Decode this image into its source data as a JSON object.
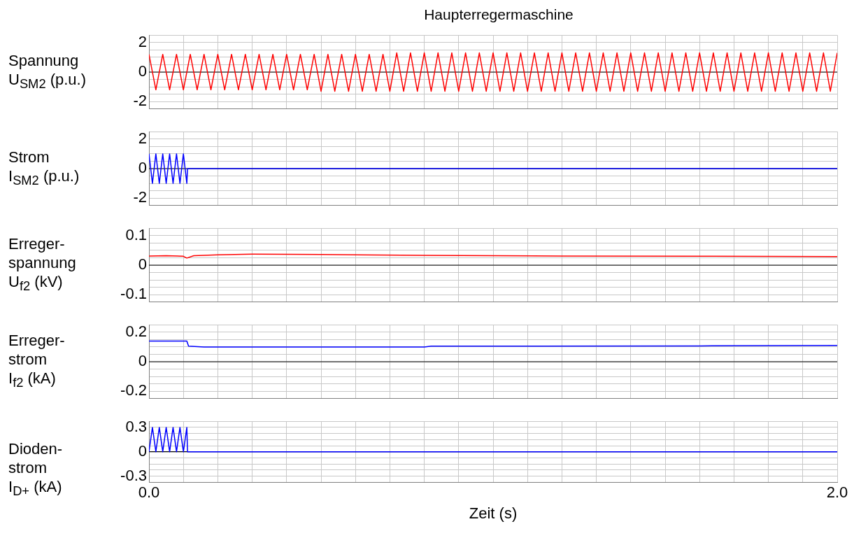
{
  "chart_data": [
    {
      "type": "line",
      "title": "Haupterregermaschine",
      "ylabel": "Spannung\nU$_{SM2}$ (p.u.)",
      "tick_labels": "y",
      "grid": true,
      "x": [
        0,
        0.02,
        0.04,
        0.06,
        0.08,
        0.1,
        0.12,
        0.14,
        0.16,
        0.18,
        0.2,
        0.22,
        0.24,
        0.26,
        0.28,
        0.3,
        0.32,
        0.34,
        0.36,
        0.38,
        0.4,
        0.42,
        0.44,
        0.46,
        0.48,
        0.5,
        0.52,
        0.54,
        0.56,
        0.58,
        0.6,
        0.62,
        0.64,
        0.66,
        0.68,
        0.7,
        0.72,
        0.74,
        0.76,
        0.78,
        0.8,
        0.82,
        0.84,
        0.86,
        0.88,
        0.9,
        0.92,
        0.94,
        0.96,
        0.98,
        1,
        1.02,
        1.04,
        1.06,
        1.08,
        1.1,
        1.12,
        1.14,
        1.16,
        1.18,
        1.2,
        1.22,
        1.24,
        1.26,
        1.28,
        1.3,
        1.32,
        1.34,
        1.36,
        1.38,
        1.4,
        1.42,
        1.44,
        1.46,
        1.48,
        1.5,
        1.52,
        1.54,
        1.56,
        1.58,
        1.6,
        1.62,
        1.64,
        1.66,
        1.68,
        1.7,
        1.72,
        1.74,
        1.76,
        1.78,
        1.8,
        1.82,
        1.84,
        1.86,
        1.88,
        1.9,
        1.92,
        1.94,
        1.96,
        1.98,
        2
      ],
      "series": [
        {
          "color": "#ff0000",
          "values": [
            1.2,
            -1.2,
            1.2,
            -1.2,
            1.2,
            -1.2,
            1.2,
            -1.2,
            1.2,
            -1.2,
            1.2,
            -1.2,
            1.2,
            -1.2,
            1.2,
            -1.2,
            1.2,
            -1.2,
            1.2,
            -1.2,
            1.2,
            -1.2,
            1.2,
            -1.2,
            1.2,
            -1.3,
            1.2,
            -1.3,
            1.2,
            -1.3,
            1.2,
            -1.3,
            1.2,
            -1.3,
            1.2,
            -1.3,
            1.3,
            -1.3,
            1.3,
            -1.3,
            1.3,
            -1.3,
            1.3,
            -1.3,
            1.3,
            -1.3,
            1.3,
            -1.3,
            1.3,
            -1.3,
            1.3,
            -1.3,
            1.3,
            -1.3,
            1.3,
            -1.3,
            1.3,
            -1.3,
            1.3,
            -1.3,
            1.3,
            -1.3,
            1.3,
            -1.3,
            1.3,
            -1.3,
            1.3,
            -1.3,
            1.3,
            -1.3,
            1.3,
            -1.3,
            1.3,
            -1.3,
            1.3,
            -1.3,
            1.3,
            -1.3,
            1.3,
            -1.3,
            1.3,
            -1.3,
            1.3,
            -1.3,
            1.3,
            -1.3,
            1.3,
            -1.3,
            1.3,
            -1.3,
            1.3,
            -1.3,
            1.3,
            -1.3,
            1.3,
            -1.3,
            1.3,
            -1.3,
            1.3,
            -1.3,
            1.3
          ]
        }
      ],
      "xlim": [
        0,
        2
      ],
      "xticks": [
        {
          "value": 0,
          "label": null
        },
        {
          "value": 0.1,
          "label": null
        },
        {
          "value": 0.2,
          "label": null
        },
        {
          "value": 0.3,
          "label": null
        },
        {
          "value": 0.4,
          "label": null
        },
        {
          "value": 0.5,
          "label": null
        },
        {
          "value": 0.6,
          "label": null
        },
        {
          "value": 0.7,
          "label": null
        },
        {
          "value": 0.8,
          "label": null
        },
        {
          "value": 0.9,
          "label": null
        },
        {
          "value": 1,
          "label": null
        },
        {
          "value": 1.1,
          "label": null
        },
        {
          "value": 1.2,
          "label": null
        },
        {
          "value": 1.3,
          "label": null
        },
        {
          "value": 1.4,
          "label": null
        },
        {
          "value": 1.5,
          "label": null
        },
        {
          "value": 1.6,
          "label": null
        },
        {
          "value": 1.7,
          "label": null
        },
        {
          "value": 1.8,
          "label": null
        },
        {
          "value": 1.9,
          "label": null
        },
        {
          "value": 2,
          "label": null
        }
      ],
      "ylim": [
        -2.5,
        2.5
      ],
      "yticks": [
        {
          "value": -2.5,
          "label": null
        },
        -2,
        {
          "value": -1.5,
          "label": null
        },
        {
          "value": -1,
          "label": null
        },
        {
          "value": -0.5,
          "label": null
        },
        0,
        {
          "value": 0.5,
          "label": null
        },
        {
          "value": 1,
          "label": null
        },
        {
          "value": 1.5,
          "label": null
        },
        2,
        {
          "value": 2.5,
          "label": null
        }
      ],
      "ref_lines": [
        {
          "axis": "y",
          "value": 0,
          "color": "#000000"
        }
      ]
    },
    {
      "type": "line",
      "ylabel": "Strom\nI$_{SM2}$ (p.u.)",
      "tick_labels": "y",
      "grid": true,
      "x": [
        0,
        0.01,
        0.02,
        0.03,
        0.04,
        0.05,
        0.06,
        0.07,
        0.08,
        0.09,
        0.1,
        0.11,
        0.112,
        2
      ],
      "series": [
        {
          "color": "#0000ff",
          "values": [
            1,
            -1,
            1,
            -1,
            1,
            -1,
            1,
            -1,
            1,
            -1,
            1,
            -1,
            0,
            0
          ]
        }
      ],
      "xlim": [
        0,
        2
      ],
      "xticks": [
        {
          "value": 0,
          "label": null
        },
        {
          "value": 0.1,
          "label": null
        },
        {
          "value": 0.2,
          "label": null
        },
        {
          "value": 0.3,
          "label": null
        },
        {
          "value": 0.4,
          "label": null
        },
        {
          "value": 0.5,
          "label": null
        },
        {
          "value": 0.6,
          "label": null
        },
        {
          "value": 0.7,
          "label": null
        },
        {
          "value": 0.8,
          "label": null
        },
        {
          "value": 0.9,
          "label": null
        },
        {
          "value": 1,
          "label": null
        },
        {
          "value": 1.1,
          "label": null
        },
        {
          "value": 1.2,
          "label": null
        },
        {
          "value": 1.3,
          "label": null
        },
        {
          "value": 1.4,
          "label": null
        },
        {
          "value": 1.5,
          "label": null
        },
        {
          "value": 1.6,
          "label": null
        },
        {
          "value": 1.7,
          "label": null
        },
        {
          "value": 1.8,
          "label": null
        },
        {
          "value": 1.9,
          "label": null
        },
        {
          "value": 2,
          "label": null
        }
      ],
      "ylim": [
        -2.5,
        2.5
      ],
      "yticks": [
        {
          "value": -2.5,
          "label": null
        },
        -2,
        {
          "value": -1.5,
          "label": null
        },
        {
          "value": -1,
          "label": null
        },
        {
          "value": -0.5,
          "label": null
        },
        0,
        {
          "value": 0.5,
          "label": null
        },
        {
          "value": 1,
          "label": null
        },
        {
          "value": 1.5,
          "label": null
        },
        2,
        {
          "value": 2.5,
          "label": null
        }
      ],
      "ref_lines": [
        {
          "axis": "y",
          "value": 0,
          "color": "#000000"
        }
      ]
    },
    {
      "type": "line",
      "ylabel": "Erreger-\nspannung\nU$_{f2}$ (kV)",
      "tick_labels": "y",
      "grid": true,
      "x": [
        0,
        0.05,
        0.1,
        0.11,
        0.13,
        0.2,
        0.3,
        0.5,
        0.8,
        1.2,
        1.6,
        2
      ],
      "series": [
        {
          "color": "#ff0000",
          "values": [
            0.031,
            0.032,
            0.03,
            0.024,
            0.032,
            0.035,
            0.037,
            0.036,
            0.033,
            0.031,
            0.03,
            0.029
          ]
        }
      ],
      "xlim": [
        0,
        2
      ],
      "xticks": [
        {
          "value": 0,
          "label": null
        },
        {
          "value": 0.1,
          "label": null
        },
        {
          "value": 0.2,
          "label": null
        },
        {
          "value": 0.3,
          "label": null
        },
        {
          "value": 0.4,
          "label": null
        },
        {
          "value": 0.5,
          "label": null
        },
        {
          "value": 0.6,
          "label": null
        },
        {
          "value": 0.7,
          "label": null
        },
        {
          "value": 0.8,
          "label": null
        },
        {
          "value": 0.9,
          "label": null
        },
        {
          "value": 1,
          "label": null
        },
        {
          "value": 1.1,
          "label": null
        },
        {
          "value": 1.2,
          "label": null
        },
        {
          "value": 1.3,
          "label": null
        },
        {
          "value": 1.4,
          "label": null
        },
        {
          "value": 1.5,
          "label": null
        },
        {
          "value": 1.6,
          "label": null
        },
        {
          "value": 1.7,
          "label": null
        },
        {
          "value": 1.8,
          "label": null
        },
        {
          "value": 1.9,
          "label": null
        },
        {
          "value": 2,
          "label": null
        }
      ],
      "ylim": [
        -0.125,
        0.125
      ],
      "yticks": [
        {
          "value": -0.125,
          "label": null
        },
        -0.1,
        {
          "value": -0.075,
          "label": null
        },
        {
          "value": -0.05,
          "label": null
        },
        {
          "value": -0.025,
          "label": null
        },
        0,
        {
          "value": 0.025,
          "label": null
        },
        {
          "value": 0.05,
          "label": null
        },
        {
          "value": 0.075,
          "label": null
        },
        0.1,
        {
          "value": 0.125,
          "label": null
        }
      ],
      "ref_lines": [
        {
          "axis": "y",
          "value": 0,
          "color": "#000000"
        }
      ]
    },
    {
      "type": "line",
      "ylabel": "Erreger-\nstrom\nI$_{f2}$ (kA)",
      "tick_labels": "y",
      "grid": true,
      "x": [
        0,
        0.11,
        0.115,
        0.16,
        0.8,
        0.82,
        1.6,
        2
      ],
      "series": [
        {
          "color": "#0000ff",
          "values": [
            0.14,
            0.14,
            0.105,
            0.1,
            0.1,
            0.105,
            0.107,
            0.11
          ]
        }
      ],
      "xlim": [
        0,
        2
      ],
      "xticks": [
        {
          "value": 0,
          "label": null
        },
        {
          "value": 0.1,
          "label": null
        },
        {
          "value": 0.2,
          "label": null
        },
        {
          "value": 0.3,
          "label": null
        },
        {
          "value": 0.4,
          "label": null
        },
        {
          "value": 0.5,
          "label": null
        },
        {
          "value": 0.6,
          "label": null
        },
        {
          "value": 0.7,
          "label": null
        },
        {
          "value": 0.8,
          "label": null
        },
        {
          "value": 0.9,
          "label": null
        },
        {
          "value": 1,
          "label": null
        },
        {
          "value": 1.1,
          "label": null
        },
        {
          "value": 1.2,
          "label": null
        },
        {
          "value": 1.3,
          "label": null
        },
        {
          "value": 1.4,
          "label": null
        },
        {
          "value": 1.5,
          "label": null
        },
        {
          "value": 1.6,
          "label": null
        },
        {
          "value": 1.7,
          "label": null
        },
        {
          "value": 1.8,
          "label": null
        },
        {
          "value": 1.9,
          "label": null
        },
        {
          "value": 2,
          "label": null
        }
      ],
      "ylim": [
        -0.25,
        0.25
      ],
      "yticks": [
        {
          "value": -0.25,
          "label": null
        },
        -0.2,
        {
          "value": -0.15,
          "label": null
        },
        {
          "value": -0.1,
          "label": null
        },
        {
          "value": -0.05,
          "label": null
        },
        0,
        {
          "value": 0.05,
          "label": null
        },
        {
          "value": 0.1,
          "label": null
        },
        {
          "value": 0.15,
          "label": null
        },
        0.2,
        {
          "value": 0.25,
          "label": null
        }
      ],
      "ref_lines": [
        {
          "axis": "y",
          "value": 0,
          "color": "#000000"
        }
      ]
    },
    {
      "type": "line",
      "ylabel": "Dioden-\nstrom\nI$_{D+}$ (kA)",
      "xlabel": "Zeit (s)",
      "grid": true,
      "x": [
        0,
        0.01,
        0.02,
        0.03,
        0.04,
        0.05,
        0.06,
        0.07,
        0.08,
        0.09,
        0.1,
        0.11,
        0.112,
        2
      ],
      "series": [
        {
          "color": "#0000ff",
          "values": [
            0,
            0.3,
            0,
            0.3,
            0,
            0.3,
            0,
            0.3,
            0,
            0.3,
            0,
            0.3,
            0,
            0
          ]
        }
      ],
      "xlim": [
        0,
        2
      ],
      "xticks": [
        {
          "value": 0,
          "label": "0.0"
        },
        {
          "value": 0.1,
          "label": null
        },
        {
          "value": 0.2,
          "label": null
        },
        {
          "value": 0.3,
          "label": null
        },
        {
          "value": 0.4,
          "label": null
        },
        {
          "value": 0.5,
          "label": null
        },
        {
          "value": 0.6,
          "label": null
        },
        {
          "value": 0.7,
          "label": null
        },
        {
          "value": 0.8,
          "label": null
        },
        {
          "value": 0.9,
          "label": null
        },
        {
          "value": 1,
          "label": null
        },
        {
          "value": 1.1,
          "label": null
        },
        {
          "value": 1.2,
          "label": null
        },
        {
          "value": 1.3,
          "label": null
        },
        {
          "value": 1.4,
          "label": null
        },
        {
          "value": 1.5,
          "label": null
        },
        {
          "value": 1.6,
          "label": null
        },
        {
          "value": 1.7,
          "label": null
        },
        {
          "value": 1.8,
          "label": null
        },
        {
          "value": 1.9,
          "label": null
        },
        {
          "value": 2,
          "label": "2.0"
        }
      ],
      "ylim": [
        -0.375,
        0.375
      ],
      "yticks": [
        {
          "value": -0.375,
          "label": null
        },
        -0.3,
        {
          "value": -0.225,
          "label": null
        },
        {
          "value": -0.15,
          "label": null
        },
        {
          "value": -0.075,
          "label": null
        },
        0,
        {
          "value": 0.075,
          "label": null
        },
        {
          "value": 0.15,
          "label": null
        },
        {
          "value": 0.225,
          "label": null
        },
        0.3,
        {
          "value": 0.375,
          "label": null
        }
      ],
      "ref_lines": [
        {
          "axis": "y",
          "value": 0,
          "color": "#000000"
        }
      ]
    }
  ]
}
